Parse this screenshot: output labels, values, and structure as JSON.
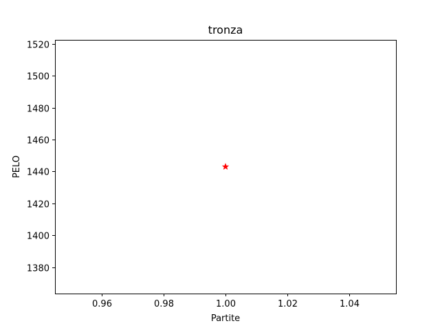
{
  "chart_data": {
    "type": "scatter",
    "title": "tronza",
    "xlabel": "Partite",
    "ylabel": "PELO",
    "xlim": [
      0.945,
      1.055
    ],
    "ylim": [
      1363.5,
      1522.5
    ],
    "x_ticks": [
      0.96,
      0.98,
      1.0,
      1.02,
      1.04
    ],
    "x_tick_labels": [
      "0.96",
      "0.98",
      "1.00",
      "1.02",
      "1.04"
    ],
    "y_ticks": [
      1380,
      1400,
      1420,
      1440,
      1460,
      1480,
      1500,
      1520
    ],
    "y_tick_labels": [
      "1380",
      "1400",
      "1420",
      "1440",
      "1460",
      "1480",
      "1500",
      "1520"
    ],
    "grid": false,
    "legend": "none",
    "series": [
      {
        "marker": "star",
        "color": "#ff0000",
        "points": [
          {
            "x": 1.0,
            "y": 1443
          }
        ]
      }
    ]
  }
}
